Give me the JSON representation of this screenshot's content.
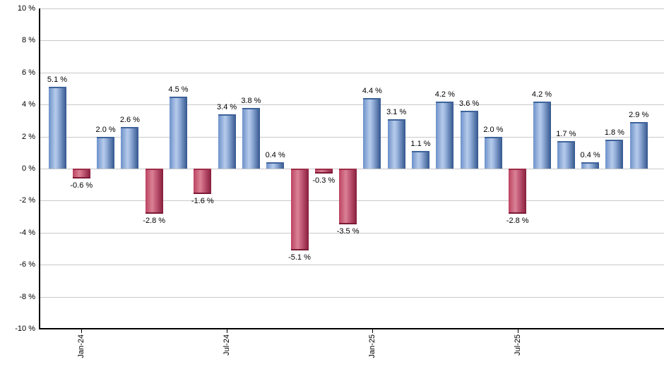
{
  "chart_data": {
    "type": "bar",
    "title": "",
    "xlabel": "",
    "ylabel": "",
    "unit": "%",
    "ylim": [
      -10,
      10
    ],
    "ytick_step": 2,
    "grid": true,
    "legend": false,
    "y_ticks": [
      "10 %",
      "8 %",
      "6 %",
      "4 %",
      "2 %",
      "0 %",
      "-2 %",
      "-4 %",
      "-6 %",
      "-8 %",
      "-10 %"
    ],
    "x_ticks": [
      {
        "label": "Jan-24",
        "bar_index": 1
      },
      {
        "label": "Jul-24",
        "bar_index": 7
      },
      {
        "label": "Jan-25",
        "bar_index": 13
      },
      {
        "label": "Jul-25",
        "bar_index": 19
      }
    ],
    "bars": [
      {
        "value": 5.1,
        "label": "5.1 %"
      },
      {
        "value": -0.6,
        "label": "-0.6 %"
      },
      {
        "value": 2.0,
        "label": "2.0 %"
      },
      {
        "value": 2.6,
        "label": "2.6 %"
      },
      {
        "value": -2.8,
        "label": "-2.8 %"
      },
      {
        "value": 4.5,
        "label": "4.5 %"
      },
      {
        "value": -1.6,
        "label": "-1.6 %"
      },
      {
        "value": 3.4,
        "label": "3.4 %"
      },
      {
        "value": 3.8,
        "label": "3.8 %"
      },
      {
        "value": 0.4,
        "label": "0.4 %"
      },
      {
        "value": -5.1,
        "label": "-5.1 %"
      },
      {
        "value": -0.3,
        "label": "-0.3 %"
      },
      {
        "value": -3.5,
        "label": "-3.5 %"
      },
      {
        "value": 4.4,
        "label": "4.4 %"
      },
      {
        "value": 3.1,
        "label": "3.1 %"
      },
      {
        "value": 1.1,
        "label": "1.1 %"
      },
      {
        "value": 4.2,
        "label": "4.2 %"
      },
      {
        "value": 3.6,
        "label": "3.6 %"
      },
      {
        "value": 2.0,
        "label": "2.0 %"
      },
      {
        "value": -2.8,
        "label": "-2.8 %"
      },
      {
        "value": 4.2,
        "label": "4.2 %"
      },
      {
        "value": 1.7,
        "label": "1.7 %"
      },
      {
        "value": 0.4,
        "label": "0.4 %"
      },
      {
        "value": 1.8,
        "label": "1.8 %"
      },
      {
        "value": 2.9,
        "label": "2.9 %"
      }
    ],
    "colors": {
      "background": "#ffffff",
      "gridline": "#c9c9c9",
      "axis": "#000000",
      "text": "#000000",
      "positive_bar": {
        "edge_left": "#6c91ca",
        "highlight": "#b7cbea",
        "edge_right": "#33568e",
        "cap": "#3e639b"
      },
      "negative_bar": {
        "edge_left": "#bd4260",
        "highlight": "#d98296",
        "edge_right": "#871d3c",
        "cap": "#7b1a36"
      }
    }
  }
}
